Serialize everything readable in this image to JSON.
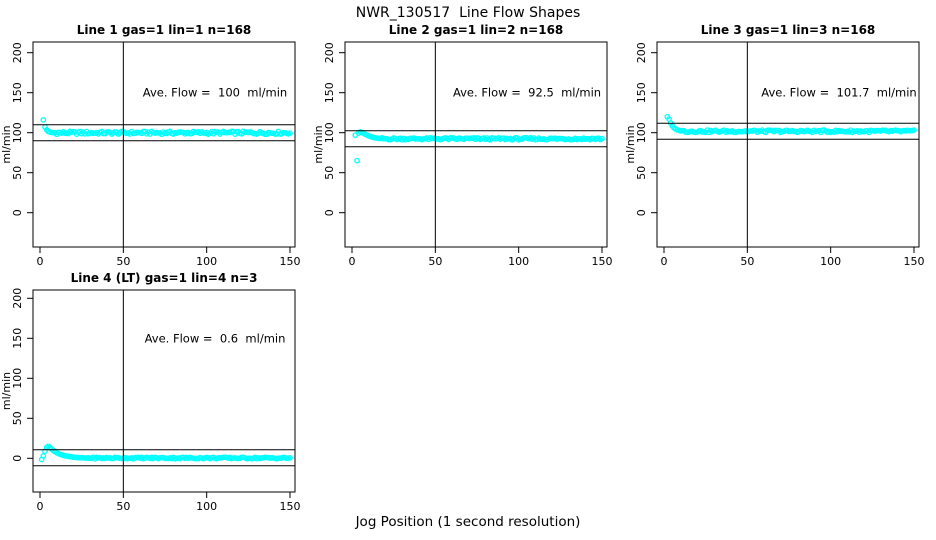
{
  "figure": {
    "title": "NWR_130517  Line Flow Shapes",
    "xlabel": "Jog Position (1 second resolution)",
    "point_color": "#00ffff",
    "axis_color": "#000000",
    "background": "#ffffff"
  },
  "chart_data": [
    {
      "type": "scatter",
      "title": "Line 1 gas=1 lin=1 n=168",
      "annotation": "Ave. Flow =  100  ml/min",
      "ave_flow": 100,
      "n": 168,
      "ylabel": "ml/min",
      "xticks": [
        0,
        50,
        100,
        150
      ],
      "yticks": [
        0,
        50,
        100,
        150,
        200
      ],
      "xlim": [
        -4,
        153
      ],
      "ylim": [
        -43,
        213
      ],
      "limit_lines": [
        110,
        90
      ],
      "vline_x": 50,
      "annotation_anchor": [
        105,
        150
      ],
      "series": {
        "marker": "open-circle",
        "transient_points": [
          [
            2,
            116
          ],
          [
            3,
            107
          ],
          [
            4,
            103.5
          ],
          [
            5,
            101.8
          ],
          [
            6,
            100.8
          ],
          [
            7,
            100.2
          ]
        ],
        "steady": {
          "x_start": 8,
          "x_end": 150,
          "step": 1,
          "y": 99.9,
          "jitter": 3.6
        }
      }
    },
    {
      "type": "scatter",
      "title": "Line 2 gas=1 lin=2 n=168",
      "annotation": "Ave. Flow =  92.5  ml/min",
      "ave_flow": 92.5,
      "n": 168,
      "ylabel": "ml/min",
      "xticks": [
        0,
        50,
        100,
        150
      ],
      "yticks": [
        0,
        50,
        100,
        150,
        200
      ],
      "xlim": [
        -4,
        153
      ],
      "ylim": [
        -43,
        213
      ],
      "limit_lines": [
        102.5,
        82.5
      ],
      "vline_x": 50,
      "annotation_anchor": [
        105,
        150
      ],
      "series": {
        "marker": "open-circle",
        "transient_points": [
          [
            2,
            97
          ],
          [
            3,
            65
          ],
          [
            4,
            99.5
          ],
          [
            5,
            101
          ],
          [
            6,
            100.3
          ],
          [
            7,
            99.2
          ],
          [
            8,
            98
          ],
          [
            9,
            97
          ],
          [
            10,
            96
          ],
          [
            11,
            95.2
          ],
          [
            12,
            94.6
          ],
          [
            13,
            94
          ],
          [
            14,
            93.6
          ],
          [
            15,
            93.2
          ],
          [
            16,
            92.9
          ],
          [
            17,
            92.7
          ]
        ],
        "steady": {
          "x_start": 18,
          "x_end": 150,
          "step": 1,
          "y": 92.4,
          "jitter": 2.6
        }
      }
    },
    {
      "type": "scatter",
      "title": "Line 3 gas=1 lin=3 n=168",
      "annotation": "Ave. Flow =  101.7  ml/min",
      "ave_flow": 101.7,
      "n": 168,
      "ylabel": "ml/min",
      "xticks": [
        0,
        50,
        100,
        150
      ],
      "yticks": [
        0,
        50,
        100,
        150,
        200
      ],
      "xlim": [
        -4,
        153
      ],
      "ylim": [
        -43,
        213
      ],
      "limit_lines": [
        111.7,
        91.7
      ],
      "vline_x": 50,
      "annotation_anchor": [
        105,
        150
      ],
      "series": {
        "marker": "open-circle",
        "transient_points": [
          [
            2,
            120
          ],
          [
            3,
            117
          ],
          [
            4,
            112
          ],
          [
            5,
            108.5
          ],
          [
            6,
            106
          ],
          [
            7,
            104.5
          ],
          [
            8,
            103.5
          ],
          [
            9,
            102.8
          ],
          [
            10,
            102.3
          ]
        ],
        "steady": {
          "x_start": 11,
          "x_end": 150,
          "step": 1,
          "y": 101.8,
          "jitter": 3.0
        }
      }
    },
    {
      "type": "scatter",
      "title": "Line 4 (LT) gas=1 lin=4 n=3",
      "annotation": "Ave. Flow =  0.6  ml/min",
      "ave_flow": 0.6,
      "n": 3,
      "ylabel": "ml/min",
      "xticks": [
        0,
        50,
        100,
        150
      ],
      "yticks": [
        0,
        50,
        100,
        150,
        200
      ],
      "xlim": [
        -4,
        153
      ],
      "ylim": [
        -43,
        213
      ],
      "limit_lines": [
        10.6,
        -9.4
      ],
      "vline_x": 50,
      "annotation_anchor": [
        105,
        150
      ],
      "series": {
        "marker": "open-circle",
        "transient_points": [
          [
            1,
            -1.5
          ],
          [
            2,
            3
          ],
          [
            3,
            9
          ],
          [
            4,
            13.5
          ],
          [
            5,
            15
          ],
          [
            6,
            13.5
          ],
          [
            7,
            11.5
          ],
          [
            8,
            9.8
          ],
          [
            9,
            8.3
          ],
          [
            10,
            7
          ],
          [
            11,
            6
          ],
          [
            12,
            5.1
          ],
          [
            13,
            4.4
          ],
          [
            14,
            3.8
          ],
          [
            15,
            3.2
          ],
          [
            16,
            2.8
          ],
          [
            17,
            2.4
          ],
          [
            18,
            2
          ],
          [
            19,
            1.7
          ],
          [
            20,
            1.5
          ],
          [
            21,
            1.2
          ],
          [
            22,
            1
          ],
          [
            23,
            0.9
          ],
          [
            24,
            0.8
          ],
          [
            25,
            0.7
          ],
          [
            26,
            0.6
          ]
        ],
        "steady": {
          "x_start": 27,
          "x_end": 150,
          "step": 1,
          "y": 0.4,
          "jitter": 2.0
        }
      }
    }
  ]
}
